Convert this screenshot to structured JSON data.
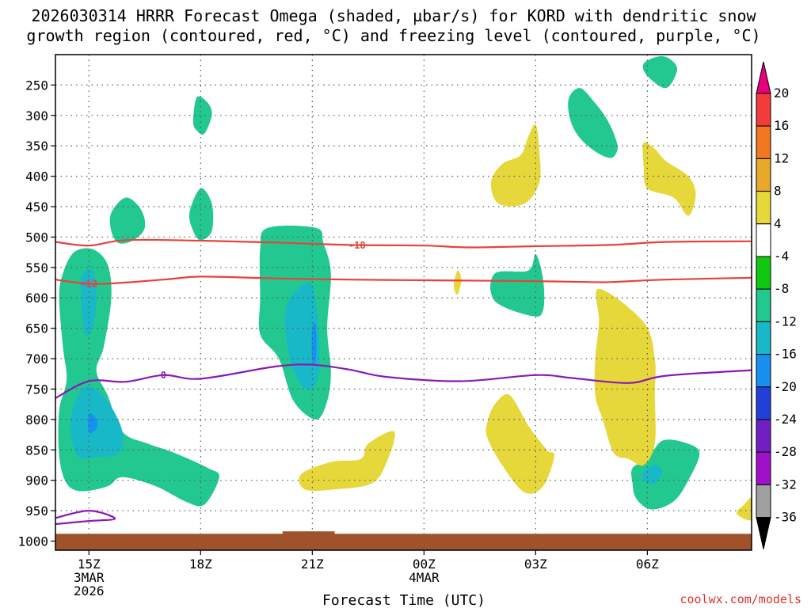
{
  "chart_data": {
    "type": "contour",
    "title_line1": "2026030314 HRRR Forecast Omega (shaded, µbar/s) for KORD with dendritic snow",
    "title_line2": "growth region (contoured, red, °C) and freezing level (contoured, purple, °C)",
    "xlabel": "Forecast Time (UTC)",
    "watermark": "coolwx.com/models",
    "xlim_hours": [
      -0.9,
      17.8
    ],
    "ylim_hPa": [
      200,
      1015
    ],
    "y_ticks": [
      {
        "p": 250,
        "label": "250"
      },
      {
        "p": 300,
        "label": "300"
      },
      {
        "p": 350,
        "label": "350"
      },
      {
        "p": 400,
        "label": "400"
      },
      {
        "p": 450,
        "label": "450"
      },
      {
        "p": 500,
        "label": "500"
      },
      {
        "p": 550,
        "label": "550"
      },
      {
        "p": 600,
        "label": "600"
      },
      {
        "p": 650,
        "label": "650"
      },
      {
        "p": 700,
        "label": "700"
      },
      {
        "p": 750,
        "label": "750"
      },
      {
        "p": 800,
        "label": "800"
      },
      {
        "p": 850,
        "label": "850"
      },
      {
        "p": 900,
        "label": "900"
      },
      {
        "p": 950,
        "label": "950"
      },
      {
        "p": 1000,
        "label": "1000"
      }
    ],
    "x_ticks": [
      {
        "h": 0,
        "lines": [
          "15Z",
          "3MAR",
          "2026"
        ]
      },
      {
        "h": 3,
        "lines": [
          "18Z"
        ]
      },
      {
        "h": 6,
        "lines": [
          "21Z"
        ]
      },
      {
        "h": 9,
        "lines": [
          "00Z",
          "4MAR"
        ]
      },
      {
        "h": 12,
        "lines": [
          "03Z"
        ]
      },
      {
        "h": 15,
        "lines": [
          "06Z"
        ]
      }
    ],
    "colorbar": {
      "levels": [
        "20",
        "16",
        "12",
        "8",
        "4",
        "-4",
        "-8",
        "-12",
        "-16",
        "-20",
        "-24",
        "-28",
        "-32",
        "-36"
      ],
      "colors": [
        "#e6007e",
        "#f23c3c",
        "#f07820",
        "#e8a82a",
        "#e6d83a",
        "#ffffff",
        "#10c810",
        "#22c890",
        "#18b8c8",
        "#1890f0",
        "#2040d8",
        "#7020c0",
        "#a010c8",
        "#a0a0a0",
        "#000000"
      ]
    },
    "omega_regions": [
      {
        "level": -8,
        "pts": [
          [
            -0.8,
            600
          ],
          [
            -0.7,
            560
          ],
          [
            -0.4,
            525
          ],
          [
            0.1,
            520
          ],
          [
            0.5,
            545
          ],
          [
            0.6,
            600
          ],
          [
            0.4,
            680
          ],
          [
            0.2,
            720
          ],
          [
            0.5,
            760
          ],
          [
            0.9,
            820
          ],
          [
            1.6,
            840
          ],
          [
            2.3,
            855
          ],
          [
            3.2,
            880
          ],
          [
            3.5,
            895
          ],
          [
            3.1,
            940
          ],
          [
            2.6,
            935
          ],
          [
            1.8,
            910
          ],
          [
            0.9,
            895
          ],
          [
            0.5,
            910
          ],
          [
            -0.2,
            918
          ],
          [
            -0.6,
            905
          ],
          [
            -0.8,
            860
          ],
          [
            -0.8,
            785
          ],
          [
            -0.6,
            735
          ],
          [
            -0.7,
            680
          ]
        ]
      },
      {
        "level": -12,
        "pts": [
          [
            -0.2,
            565
          ],
          [
            0.1,
            555
          ],
          [
            0.2,
            600
          ],
          [
            0.1,
            650
          ],
          [
            -0.1,
            660
          ],
          [
            -0.2,
            615
          ]
        ]
      },
      {
        "level": -12,
        "pts": [
          [
            -0.3,
            760
          ],
          [
            0.0,
            745
          ],
          [
            0.5,
            770
          ],
          [
            0.9,
            820
          ],
          [
            0.8,
            855
          ],
          [
            0.2,
            862
          ],
          [
            -0.3,
            860
          ],
          [
            -0.5,
            810
          ]
        ]
      },
      {
        "level": -16,
        "pts": [
          [
            0.0,
            790
          ],
          [
            0.2,
            800
          ],
          [
            0.2,
            815
          ],
          [
            0.0,
            822
          ]
        ]
      },
      {
        "level": -8,
        "pts": [
          [
            0.6,
            460
          ],
          [
            1.0,
            435
          ],
          [
            1.4,
            455
          ],
          [
            1.5,
            485
          ],
          [
            1.2,
            505
          ],
          [
            0.8,
            510
          ],
          [
            0.6,
            490
          ]
        ]
      },
      {
        "level": -8,
        "pts": [
          [
            2.8,
            310
          ],
          [
            2.9,
            270
          ],
          [
            3.2,
            280
          ],
          [
            3.3,
            300
          ],
          [
            3.1,
            330
          ],
          [
            2.9,
            325
          ]
        ]
      },
      {
        "level": -8,
        "pts": [
          [
            2.7,
            460
          ],
          [
            3.0,
            420
          ],
          [
            3.3,
            445
          ],
          [
            3.3,
            490
          ],
          [
            3.0,
            505
          ],
          [
            2.8,
            490
          ]
        ]
      },
      {
        "level": -8,
        "pts": [
          [
            4.6,
            520
          ],
          [
            4.8,
            485
          ],
          [
            6.1,
            485
          ],
          [
            6.3,
            510
          ],
          [
            6.5,
            560
          ],
          [
            6.4,
            650
          ],
          [
            6.5,
            720
          ],
          [
            6.4,
            770
          ],
          [
            6.1,
            800
          ],
          [
            5.5,
            770
          ],
          [
            5.1,
            700
          ],
          [
            4.6,
            660
          ],
          [
            4.6,
            600
          ]
        ]
      },
      {
        "level": -12,
        "pts": [
          [
            5.3,
            615
          ],
          [
            5.9,
            575
          ],
          [
            6.1,
            610
          ],
          [
            6.2,
            700
          ],
          [
            6.1,
            740
          ],
          [
            5.8,
            750
          ],
          [
            5.4,
            700
          ]
        ]
      },
      {
        "level": -16,
        "pts": [
          [
            6.0,
            650
          ],
          [
            6.1,
            645
          ],
          [
            6.1,
            700
          ],
          [
            6.0,
            705
          ]
        ]
      },
      {
        "level": -8,
        "pts": [
          [
            11.8,
            555
          ],
          [
            12.0,
            528
          ],
          [
            12.2,
            570
          ],
          [
            12.2,
            620
          ],
          [
            11.9,
            630
          ],
          [
            10.9,
            605
          ],
          [
            10.9,
            560
          ]
        ]
      },
      {
        "level": -8,
        "pts": [
          [
            12.9,
            270
          ],
          [
            13.2,
            255
          ],
          [
            13.6,
            280
          ],
          [
            13.9,
            305
          ],
          [
            14.1,
            330
          ],
          [
            14.2,
            355
          ],
          [
            14.0,
            370
          ],
          [
            13.5,
            355
          ],
          [
            13.1,
            330
          ],
          [
            12.9,
            300
          ]
        ]
      },
      {
        "level": -8,
        "pts": [
          [
            14.9,
            215
          ],
          [
            15.3,
            203
          ],
          [
            15.6,
            207
          ],
          [
            15.8,
            225
          ],
          [
            15.5,
            255
          ],
          [
            15.0,
            235
          ]
        ]
      },
      {
        "level": -8,
        "pts": [
          [
            14.6,
            880
          ],
          [
            15.0,
            865
          ],
          [
            15.4,
            835
          ],
          [
            16.0,
            838
          ],
          [
            16.4,
            855
          ],
          [
            16.1,
            900
          ],
          [
            15.7,
            935
          ],
          [
            15.1,
            948
          ],
          [
            14.7,
            930
          ],
          [
            14.6,
            905
          ]
        ]
      },
      {
        "level": -12,
        "pts": [
          [
            14.9,
            885
          ],
          [
            15.2,
            875
          ],
          [
            15.4,
            885
          ],
          [
            15.2,
            905
          ],
          [
            14.9,
            900
          ]
        ]
      },
      {
        "level": 4,
        "pts": [
          [
            11.8,
            335
          ],
          [
            12.0,
            315
          ],
          [
            12.1,
            360
          ],
          [
            12.1,
            410
          ],
          [
            11.7,
            445
          ],
          [
            11.0,
            445
          ],
          [
            10.8,
            410
          ],
          [
            11.1,
            380
          ],
          [
            11.6,
            365
          ]
        ]
      },
      {
        "level": 4,
        "pts": [
          [
            14.9,
            345
          ],
          [
            15.2,
            355
          ],
          [
            15.5,
            375
          ],
          [
            16.1,
            400
          ],
          [
            16.3,
            430
          ],
          [
            16.1,
            465
          ],
          [
            15.7,
            435
          ],
          [
            15.0,
            420
          ],
          [
            14.9,
            385
          ]
        ]
      },
      {
        "level": 4,
        "pts": [
          [
            13.7,
            585
          ],
          [
            14.9,
            640
          ],
          [
            15.2,
            700
          ],
          [
            15.2,
            760
          ],
          [
            15.2,
            840
          ],
          [
            14.9,
            875
          ],
          [
            14.5,
            865
          ],
          [
            14.1,
            855
          ],
          [
            13.8,
            800
          ],
          [
            13.6,
            760
          ],
          [
            13.6,
            700
          ],
          [
            13.7,
            640
          ]
        ]
      },
      {
        "level": 4,
        "pts": [
          [
            10.7,
            805
          ],
          [
            10.9,
            775
          ],
          [
            11.3,
            760
          ],
          [
            11.8,
            810
          ],
          [
            12.3,
            850
          ],
          [
            12.5,
            860
          ],
          [
            12.2,
            910
          ],
          [
            11.7,
            920
          ],
          [
            11.1,
            875
          ],
          [
            10.7,
            830
          ]
        ]
      },
      {
        "level": 4,
        "pts": [
          [
            7.5,
            840
          ],
          [
            8.2,
            820
          ],
          [
            8.0,
            870
          ],
          [
            7.6,
            905
          ],
          [
            6.6,
            915
          ],
          [
            5.8,
            915
          ],
          [
            5.7,
            890
          ],
          [
            6.5,
            870
          ],
          [
            7.3,
            865
          ]
        ]
      },
      {
        "level": 4,
        "pts": [
          [
            9.9,
            555
          ],
          [
            10.0,
            570
          ],
          [
            9.9,
            595
          ],
          [
            9.8,
            580
          ]
        ]
      },
      {
        "level": 4,
        "pts": [
          [
            17.8,
            930
          ],
          [
            17.8,
            965
          ],
          [
            17.4,
            955
          ],
          [
            17.6,
            940
          ]
        ]
      }
    ],
    "contours": [
      {
        "name": "dgz-minus18",
        "color": "#e8423a",
        "label": "-18",
        "label_at": [
          7.2,
          514
        ],
        "pts": [
          [
            -0.9,
            508
          ],
          [
            0.0,
            514
          ],
          [
            1.0,
            505
          ],
          [
            3.0,
            506
          ],
          [
            5.0,
            509
          ],
          [
            7.0,
            513
          ],
          [
            9.0,
            514
          ],
          [
            10.2,
            517
          ],
          [
            12.0,
            515
          ],
          [
            14.0,
            513
          ],
          [
            15.5,
            508
          ],
          [
            17.8,
            507
          ]
        ]
      },
      {
        "name": "dgz-minus12",
        "color": "#e8423a",
        "label": "-12",
        "label_at": [
          0.0,
          577
        ],
        "pts": [
          [
            -0.9,
            570
          ],
          [
            0.2,
            577
          ],
          [
            2.0,
            570
          ],
          [
            3.0,
            565
          ],
          [
            5.0,
            568
          ],
          [
            7.0,
            570
          ],
          [
            9.0,
            571
          ],
          [
            11.0,
            572
          ],
          [
            12.5,
            573
          ],
          [
            13.5,
            574
          ],
          [
            14.0,
            574
          ],
          [
            15.5,
            570
          ],
          [
            17.8,
            567
          ]
        ]
      },
      {
        "name": "freezing-level-0",
        "color": "#8a1ab4",
        "label": "0",
        "label_at": [
          2.0,
          727
        ],
        "pts": [
          [
            -0.9,
            765
          ],
          [
            0.0,
            737
          ],
          [
            1.0,
            738
          ],
          [
            2.0,
            727
          ],
          [
            3.0,
            733
          ],
          [
            5.0,
            713
          ],
          [
            6.0,
            710
          ],
          [
            7.0,
            718
          ],
          [
            8.0,
            730
          ],
          [
            10.0,
            737
          ],
          [
            12.0,
            727
          ],
          [
            13.0,
            732
          ],
          [
            14.5,
            740
          ],
          [
            15.5,
            728
          ],
          [
            17.8,
            719
          ]
        ]
      },
      {
        "name": "near-surface-0",
        "color": "#8a1ab4",
        "label": "",
        "label_at": null,
        "pts": [
          [
            -0.9,
            962
          ],
          [
            0.0,
            950
          ],
          [
            0.7,
            963
          ],
          [
            0.0,
            967
          ],
          [
            -0.9,
            972
          ]
        ]
      }
    ],
    "terrain": {
      "color": "#a0522d",
      "top_hPa": 988,
      "bump": [
        5.2,
        6.6,
        984
      ]
    }
  }
}
